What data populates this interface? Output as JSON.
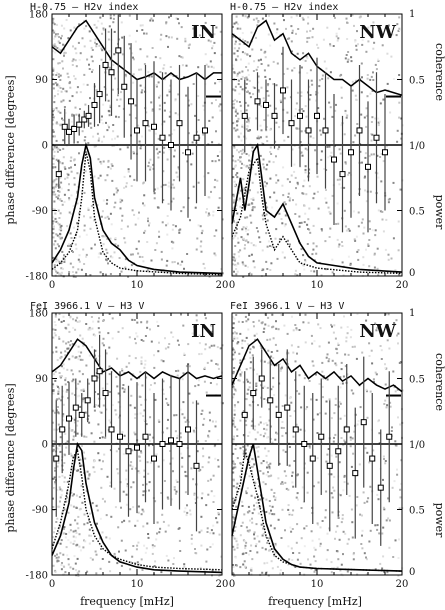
{
  "figure": {
    "ylabel": "phase difference [degrees]",
    "xlabel": "frequency [mHz]",
    "right_top": "coherence",
    "right_bottom": "power",
    "right_mid": "1/0"
  },
  "chart_data": [
    {
      "type": "scatter",
      "title": "H-0.75 – H2v index",
      "tag": "IN",
      "xlim": [
        0,
        20
      ],
      "ylim": [
        -180,
        180
      ],
      "xticks": [
        0,
        10,
        20
      ],
      "yticks": [
        -180,
        -90,
        0,
        90,
        180
      ],
      "right_ticks_top": [
        "1",
        "0.5",
        "1/0"
      ],
      "right_ticks_bottom": [
        "0.5",
        "0"
      ],
      "phase_points": [
        {
          "x": 0.8,
          "y": -40,
          "err": 20
        },
        {
          "x": 1.5,
          "y": 25,
          "err": 25
        },
        {
          "x": 2.0,
          "y": 18,
          "err": 18
        },
        {
          "x": 2.6,
          "y": 22,
          "err": 20
        },
        {
          "x": 3.2,
          "y": 28,
          "err": 15
        },
        {
          "x": 3.8,
          "y": 35,
          "err": 12
        },
        {
          "x": 4.3,
          "y": 40,
          "err": 15
        },
        {
          "x": 5.0,
          "y": 55,
          "err": 30
        },
        {
          "x": 5.6,
          "y": 70,
          "err": 40
        },
        {
          "x": 6.3,
          "y": 110,
          "err": 50
        },
        {
          "x": 7.0,
          "y": 100,
          "err": 60
        },
        {
          "x": 7.8,
          "y": 130,
          "err": 60
        },
        {
          "x": 8.5,
          "y": 80,
          "err": 70
        },
        {
          "x": 9.3,
          "y": 60,
          "err": 80
        },
        {
          "x": 10.0,
          "y": 20,
          "err": 70
        },
        {
          "x": 11.0,
          "y": 30,
          "err": 80
        },
        {
          "x": 12.0,
          "y": 25,
          "err": 90
        },
        {
          "x": 13.0,
          "y": 10,
          "err": 90
        },
        {
          "x": 14.0,
          "y": 0,
          "err": 90
        },
        {
          "x": 15.0,
          "y": 30,
          "err": 80
        },
        {
          "x": 16.0,
          "y": -10,
          "err": 90
        },
        {
          "x": 17.0,
          "y": 10,
          "err": 90
        },
        {
          "x": 18.0,
          "y": 20,
          "err": 90
        }
      ],
      "coherence": [
        [
          0,
          0.75
        ],
        [
          1,
          0.7
        ],
        [
          2,
          0.8
        ],
        [
          3,
          0.9
        ],
        [
          4,
          0.95
        ],
        [
          5,
          0.85
        ],
        [
          6,
          0.75
        ],
        [
          7,
          0.65
        ],
        [
          8,
          0.6
        ],
        [
          9,
          0.55
        ],
        [
          10,
          0.5
        ],
        [
          11,
          0.52
        ],
        [
          12,
          0.55
        ],
        [
          13,
          0.5
        ],
        [
          14,
          0.55
        ],
        [
          15,
          0.5
        ],
        [
          16,
          0.52
        ],
        [
          17,
          0.55
        ],
        [
          18,
          0.5
        ],
        [
          19,
          0.55
        ],
        [
          20,
          0.55
        ]
      ],
      "power_a": [
        [
          0,
          0.1
        ],
        [
          1,
          0.2
        ],
        [
          2,
          0.35
        ],
        [
          3,
          0.6
        ],
        [
          3.5,
          0.85
        ],
        [
          4,
          1.0
        ],
        [
          4.5,
          0.9
        ],
        [
          5,
          0.6
        ],
        [
          6,
          0.35
        ],
        [
          7,
          0.25
        ],
        [
          8,
          0.2
        ],
        [
          9,
          0.12
        ],
        [
          10,
          0.08
        ],
        [
          12,
          0.05
        ],
        [
          15,
          0.03
        ],
        [
          20,
          0.02
        ]
      ],
      "power_b": [
        [
          0,
          0.05
        ],
        [
          1,
          0.1
        ],
        [
          2,
          0.18
        ],
        [
          3,
          0.35
        ],
        [
          3.5,
          0.6
        ],
        [
          4,
          0.95
        ],
        [
          4.5,
          0.8
        ],
        [
          5,
          0.45
        ],
        [
          6,
          0.18
        ],
        [
          7,
          0.1
        ],
        [
          8,
          0.06
        ],
        [
          10,
          0.04
        ],
        [
          15,
          0.02
        ],
        [
          20,
          0.01
        ]
      ]
    },
    {
      "type": "scatter",
      "title": "H-0.75 – H2v index",
      "tag": "NW",
      "xlim": [
        0,
        20
      ],
      "ylim": [
        -180,
        180
      ],
      "xticks": [
        0,
        10,
        20
      ],
      "yticks": [
        -180,
        -90,
        0,
        90,
        180
      ],
      "right_ticks_top": [
        "1",
        "0.5",
        "1/0"
      ],
      "right_ticks_bottom": [
        "0.5",
        "0"
      ],
      "phase_points": [
        {
          "x": 1.5,
          "y": 40,
          "err": 50
        },
        {
          "x": 3.0,
          "y": 60,
          "err": 40
        },
        {
          "x": 4.0,
          "y": 55,
          "err": 35
        },
        {
          "x": 5.0,
          "y": 40,
          "err": 45
        },
        {
          "x": 6.0,
          "y": 75,
          "err": 60
        },
        {
          "x": 7.0,
          "y": 30,
          "err": 60
        },
        {
          "x": 8.0,
          "y": 40,
          "err": 70
        },
        {
          "x": 9.0,
          "y": 20,
          "err": 70
        },
        {
          "x": 10.0,
          "y": 40,
          "err": 80
        },
        {
          "x": 11.0,
          "y": 20,
          "err": 80
        },
        {
          "x": 12.0,
          "y": -20,
          "err": 90
        },
        {
          "x": 13.0,
          "y": -40,
          "err": 80
        },
        {
          "x": 14.0,
          "y": -10,
          "err": 90
        },
        {
          "x": 15.0,
          "y": 20,
          "err": 90
        },
        {
          "x": 16.0,
          "y": -30,
          "err": 90
        },
        {
          "x": 17.0,
          "y": 10,
          "err": 90
        },
        {
          "x": 18.0,
          "y": -10,
          "err": 80
        }
      ],
      "coherence": [
        [
          0,
          0.85
        ],
        [
          1,
          0.8
        ],
        [
          2,
          0.75
        ],
        [
          3,
          0.9
        ],
        [
          4,
          0.95
        ],
        [
          5,
          0.8
        ],
        [
          6,
          0.85
        ],
        [
          7,
          0.7
        ],
        [
          8,
          0.65
        ],
        [
          9,
          0.7
        ],
        [
          10,
          0.6
        ],
        [
          11,
          0.55
        ],
        [
          12,
          0.5
        ],
        [
          13,
          0.5
        ],
        [
          14,
          0.45
        ],
        [
          15,
          0.5
        ],
        [
          16,
          0.45
        ],
        [
          17,
          0.4
        ],
        [
          18,
          0.42
        ],
        [
          19,
          0.4
        ],
        [
          20,
          0.38
        ]
      ],
      "power_a": [
        [
          0,
          0.4
        ],
        [
          1,
          0.75
        ],
        [
          1.5,
          0.5
        ],
        [
          2,
          0.7
        ],
        [
          2.5,
          0.95
        ],
        [
          3,
          1.0
        ],
        [
          3.5,
          0.75
        ],
        [
          4,
          0.5
        ],
        [
          5,
          0.45
        ],
        [
          6,
          0.55
        ],
        [
          7,
          0.4
        ],
        [
          8,
          0.25
        ],
        [
          9,
          0.15
        ],
        [
          10,
          0.1
        ],
        [
          12,
          0.08
        ],
        [
          15,
          0.05
        ],
        [
          20,
          0.03
        ]
      ],
      "power_b": [
        [
          0,
          0.3
        ],
        [
          1,
          0.45
        ],
        [
          2,
          0.8
        ],
        [
          3,
          0.9
        ],
        [
          3.5,
          0.6
        ],
        [
          4,
          0.4
        ],
        [
          5,
          0.2
        ],
        [
          6,
          0.3
        ],
        [
          7,
          0.2
        ],
        [
          8,
          0.1
        ],
        [
          10,
          0.06
        ],
        [
          15,
          0.03
        ],
        [
          20,
          0.02
        ]
      ]
    },
    {
      "type": "scatter",
      "title": "FeI 3966.1 V – H3 V",
      "tag": "IN",
      "xlim": [
        0,
        20
      ],
      "ylim": [
        -180,
        180
      ],
      "xticks": [
        0,
        10,
        20
      ],
      "yticks": [
        -180,
        -90,
        0,
        90,
        180
      ],
      "right_ticks_top": [
        "1",
        "0.5",
        "1/0"
      ],
      "right_ticks_bottom": [
        "0.5",
        "0"
      ],
      "phase_points": [
        {
          "x": 0.5,
          "y": -20,
          "err": 80
        },
        {
          "x": 1.2,
          "y": 20,
          "err": 60
        },
        {
          "x": 2.0,
          "y": 35,
          "err": 50
        },
        {
          "x": 2.8,
          "y": 50,
          "err": 40
        },
        {
          "x": 3.5,
          "y": 40,
          "err": 30
        },
        {
          "x": 4.2,
          "y": 60,
          "err": 30
        },
        {
          "x": 5.0,
          "y": 90,
          "err": 40
        },
        {
          "x": 5.6,
          "y": 100,
          "err": 50
        },
        {
          "x": 6.3,
          "y": 70,
          "err": 60
        },
        {
          "x": 7.0,
          "y": 20,
          "err": 80
        },
        {
          "x": 8.0,
          "y": 10,
          "err": 90
        },
        {
          "x": 9.0,
          "y": -10,
          "err": 90
        },
        {
          "x": 10.0,
          "y": -5,
          "err": 90
        },
        {
          "x": 11.0,
          "y": 10,
          "err": 90
        },
        {
          "x": 12.0,
          "y": -20,
          "err": 90
        },
        {
          "x": 13.0,
          "y": 0,
          "err": 90
        },
        {
          "x": 14.0,
          "y": 5,
          "err": 90
        },
        {
          "x": 15.0,
          "y": 0,
          "err": 90
        },
        {
          "x": 16.0,
          "y": 20,
          "err": 90
        },
        {
          "x": 17.0,
          "y": -30,
          "err": 90
        }
      ],
      "coherence": [
        [
          0,
          0.55
        ],
        [
          1,
          0.6
        ],
        [
          2,
          0.7
        ],
        [
          3,
          0.8
        ],
        [
          4,
          0.75
        ],
        [
          5,
          0.65
        ],
        [
          6,
          0.55
        ],
        [
          7,
          0.58
        ],
        [
          8,
          0.52
        ],
        [
          9,
          0.55
        ],
        [
          10,
          0.5
        ],
        [
          11,
          0.55
        ],
        [
          12,
          0.5
        ],
        [
          13,
          0.55
        ],
        [
          14,
          0.52
        ],
        [
          15,
          0.5
        ],
        [
          16,
          0.55
        ],
        [
          17,
          0.5
        ],
        [
          18,
          0.52
        ],
        [
          19,
          0.5
        ],
        [
          20,
          0.52
        ]
      ],
      "power_a": [
        [
          0,
          0.15
        ],
        [
          1,
          0.3
        ],
        [
          2,
          0.55
        ],
        [
          2.5,
          0.8
        ],
        [
          3,
          1.0
        ],
        [
          3.5,
          0.95
        ],
        [
          4,
          0.7
        ],
        [
          5,
          0.4
        ],
        [
          6,
          0.25
        ],
        [
          7,
          0.15
        ],
        [
          8,
          0.1
        ],
        [
          10,
          0.06
        ],
        [
          12,
          0.04
        ],
        [
          15,
          0.03
        ],
        [
          20,
          0.02
        ]
      ],
      "power_b": [
        [
          0,
          0.2
        ],
        [
          1,
          0.4
        ],
        [
          2,
          0.7
        ],
        [
          2.5,
          0.9
        ],
        [
          3,
          0.95
        ],
        [
          3.5,
          0.75
        ],
        [
          4,
          0.5
        ],
        [
          5,
          0.3
        ],
        [
          6,
          0.2
        ],
        [
          7,
          0.15
        ],
        [
          8,
          0.12
        ],
        [
          10,
          0.08
        ],
        [
          12,
          0.06
        ],
        [
          15,
          0.05
        ],
        [
          20,
          0.04
        ]
      ]
    },
    {
      "type": "scatter",
      "title": "FeI 3966.1 V – H3 V",
      "tag": "NW",
      "xlim": [
        0,
        20
      ],
      "ylim": [
        -180,
        180
      ],
      "xticks": [
        0,
        10,
        20
      ],
      "yticks": [
        -180,
        -90,
        0,
        90,
        180
      ],
      "right_ticks_top": [
        "1",
        "0.5",
        "1/0"
      ],
      "right_ticks_bottom": [
        "0.5",
        "0"
      ],
      "phase_points": [
        {
          "x": 1.5,
          "y": 40,
          "err": 60
        },
        {
          "x": 2.5,
          "y": 70,
          "err": 50
        },
        {
          "x": 3.5,
          "y": 90,
          "err": 40
        },
        {
          "x": 4.5,
          "y": 60,
          "err": 60
        },
        {
          "x": 5.5,
          "y": 40,
          "err": 70
        },
        {
          "x": 6.5,
          "y": 50,
          "err": 80
        },
        {
          "x": 7.5,
          "y": 20,
          "err": 80
        },
        {
          "x": 8.5,
          "y": 0,
          "err": 80
        },
        {
          "x": 9.5,
          "y": -20,
          "err": 90
        },
        {
          "x": 10.5,
          "y": 10,
          "err": 80
        },
        {
          "x": 11.5,
          "y": -30,
          "err": 90
        },
        {
          "x": 12.5,
          "y": -10,
          "err": 90
        },
        {
          "x": 13.5,
          "y": 20,
          "err": 90
        },
        {
          "x": 14.5,
          "y": -40,
          "err": 90
        },
        {
          "x": 15.5,
          "y": 30,
          "err": 90
        },
        {
          "x": 16.5,
          "y": -20,
          "err": 90
        },
        {
          "x": 17.5,
          "y": -60,
          "err": 80
        },
        {
          "x": 18.5,
          "y": 10,
          "err": 90
        }
      ],
      "coherence": [
        [
          0,
          0.45
        ],
        [
          1,
          0.6
        ],
        [
          2,
          0.75
        ],
        [
          3,
          0.8
        ],
        [
          4,
          0.7
        ],
        [
          5,
          0.6
        ],
        [
          6,
          0.65
        ],
        [
          7,
          0.55
        ],
        [
          8,
          0.6
        ],
        [
          9,
          0.5
        ],
        [
          10,
          0.55
        ],
        [
          11,
          0.5
        ],
        [
          12,
          0.55
        ],
        [
          13,
          0.48
        ],
        [
          14,
          0.52
        ],
        [
          15,
          0.45
        ],
        [
          16,
          0.5
        ],
        [
          17,
          0.45
        ],
        [
          18,
          0.42
        ],
        [
          19,
          0.45
        ],
        [
          20,
          0.4
        ]
      ],
      "power_a": [
        [
          0,
          0.3
        ],
        [
          1,
          0.6
        ],
        [
          2,
          0.9
        ],
        [
          2.5,
          1.0
        ],
        [
          3,
          0.8
        ],
        [
          4,
          0.4
        ],
        [
          5,
          0.2
        ],
        [
          6,
          0.12
        ],
        [
          7,
          0.08
        ],
        [
          8,
          0.06
        ],
        [
          10,
          0.05
        ],
        [
          15,
          0.04
        ],
        [
          20,
          0.03
        ]
      ],
      "power_b": [
        [
          0,
          0.5
        ],
        [
          1,
          0.7
        ],
        [
          1.5,
          0.95
        ],
        [
          2,
          0.85
        ],
        [
          3,
          0.6
        ],
        [
          4,
          0.3
        ],
        [
          5,
          0.15
        ],
        [
          6,
          0.1
        ],
        [
          8,
          0.06
        ],
        [
          10,
          0.05
        ],
        [
          15,
          0.04
        ],
        [
          20,
          0.03
        ]
      ]
    }
  ]
}
